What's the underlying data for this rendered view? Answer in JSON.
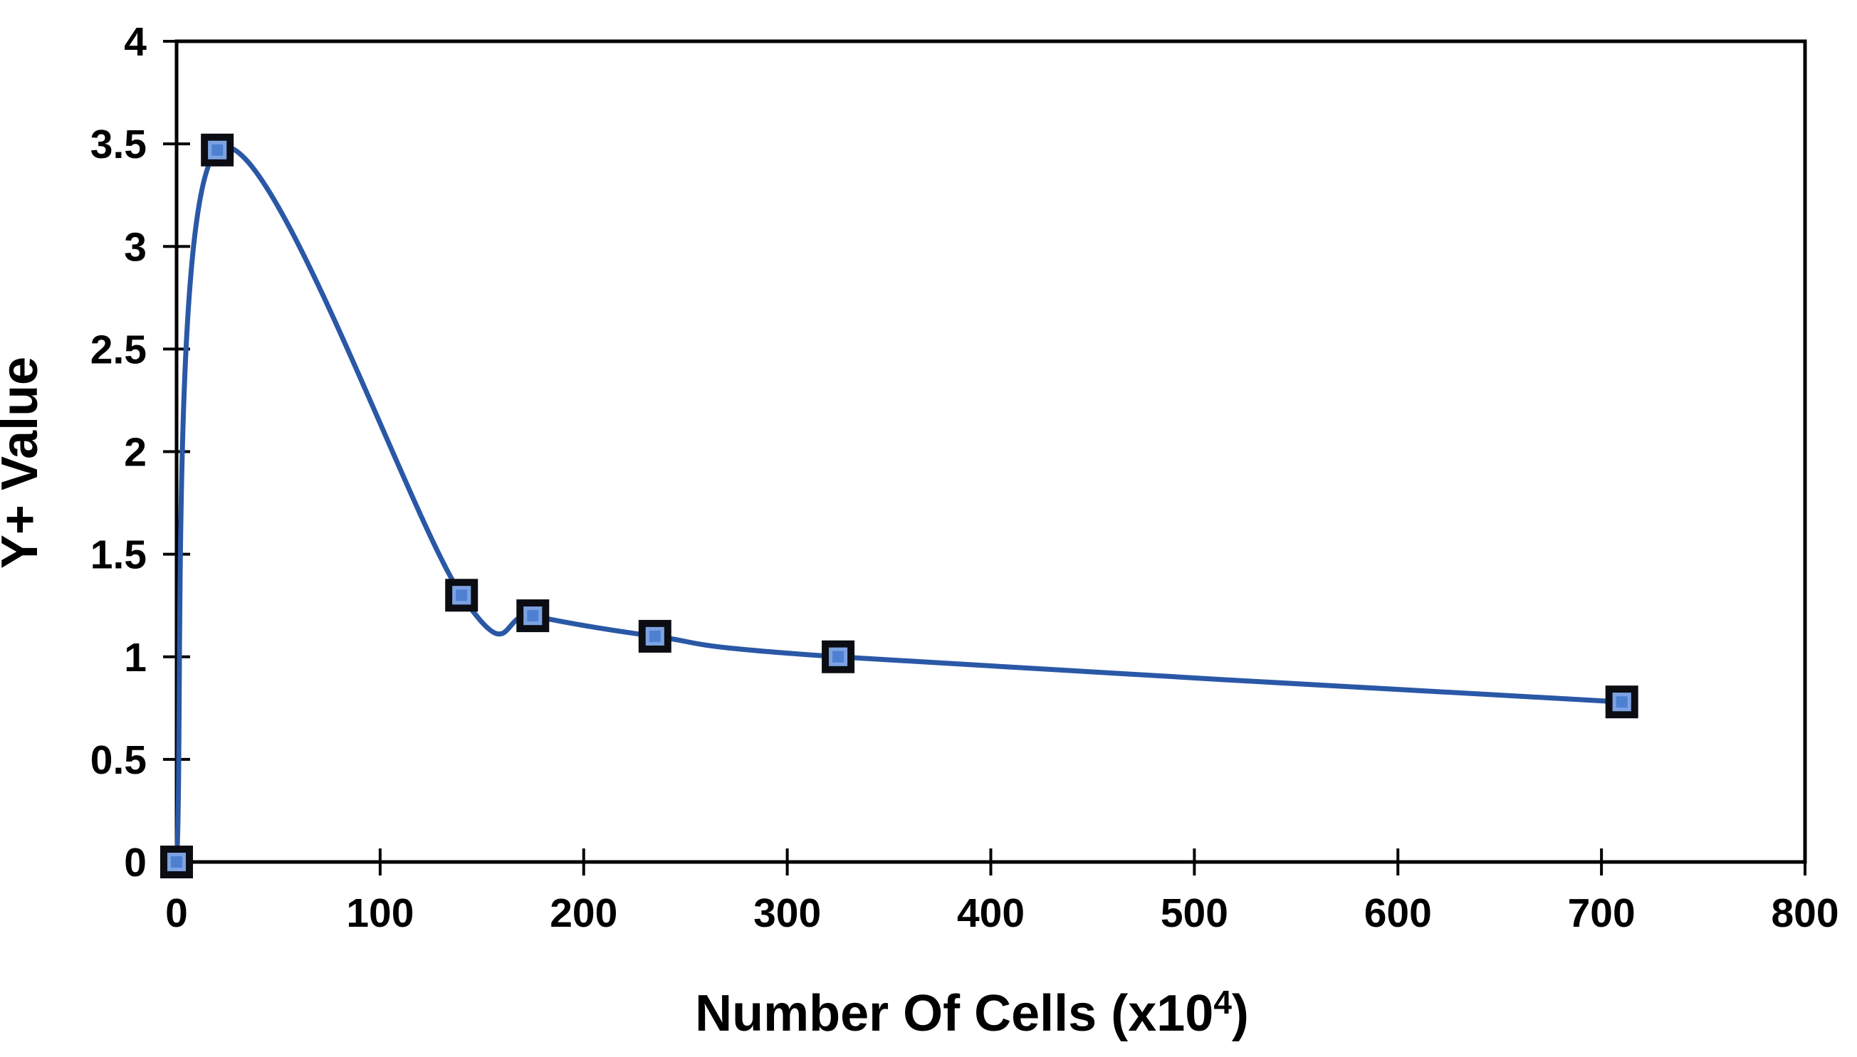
{
  "chart_data": {
    "type": "line",
    "title": "",
    "xlabel": "Number Of Cells (x10^4)",
    "xlabel_main": "Number Of Cells (x10",
    "xlabel_sup": "4",
    "xlabel_close": ")",
    "ylabel": "Y+ Value",
    "xlim": [
      0,
      800
    ],
    "ylim": [
      0,
      4
    ],
    "x_ticks": [
      0,
      100,
      200,
      300,
      400,
      500,
      600,
      700,
      800
    ],
    "y_ticks": [
      0,
      0.5,
      1,
      1.5,
      2,
      2.5,
      3,
      3.5,
      4
    ],
    "y_tick_labels": [
      "0",
      "0.5",
      "1",
      "1.5",
      "2",
      "2.5",
      "3",
      "3.5",
      "4"
    ],
    "x_tick_labels": [
      "0",
      "100",
      "200",
      "300",
      "400",
      "500",
      "600",
      "700",
      "800"
    ],
    "grid": false,
    "legend": "none",
    "line_style": "smooth",
    "marker": "square",
    "series": [
      {
        "name": "Y+ Value",
        "points": [
          {
            "x": 0,
            "y": 0
          },
          {
            "x": 20,
            "y": 3.47
          },
          {
            "x": 140,
            "y": 1.3
          },
          {
            "x": 175,
            "y": 1.2
          },
          {
            "x": 235,
            "y": 1.1
          },
          {
            "x": 325,
            "y": 1.0
          },
          {
            "x": 710,
            "y": 0.78
          }
        ]
      }
    ],
    "colors": {
      "line": "#2a58a6",
      "marker_fill": "#4e80d1",
      "marker_highlight": "#7da2e2",
      "marker_border": "#0b0d12",
      "axis": "#000000",
      "background": "#ffffff"
    },
    "layout": {
      "plot_left": 248,
      "plot_right": 2535,
      "plot_top": 58,
      "plot_bottom": 1211,
      "tick_half_length": 19
    }
  }
}
